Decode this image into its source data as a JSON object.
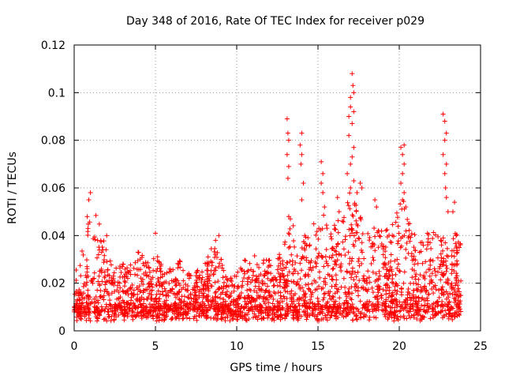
{
  "chart_data": {
    "type": "scatter",
    "title": "Day 348 of 2016, Rate Of TEC Index for receiver p029",
    "xlabel": "GPS time / hours",
    "ylabel": "ROTI / TECUs",
    "xlim": [
      0,
      25
    ],
    "ylim": [
      0,
      0.12
    ],
    "x_ticks": [
      0,
      5,
      10,
      15,
      20,
      25
    ],
    "x_tick_labels": [
      "0",
      "5",
      "10",
      "15",
      "20",
      "25"
    ],
    "y_ticks": [
      0,
      0.02,
      0.04,
      0.06,
      0.08,
      0.1,
      0.12
    ],
    "y_tick_labels": [
      "0",
      "0.02",
      "0.04",
      "0.06",
      "0.08",
      "0.1",
      "0.12"
    ],
    "grid": true,
    "marker": "+",
    "color": "#ff0000",
    "x_range_hours": [
      0,
      23.8
    ],
    "envelope": {
      "hours": [
        0,
        0.2,
        0.5,
        0.8,
        1.0,
        1.3,
        1.6,
        2.0,
        2.5,
        3.0,
        3.5,
        4.0,
        4.5,
        5.0,
        5.5,
        6.0,
        6.5,
        7.0,
        7.5,
        8.0,
        8.5,
        9.0,
        9.5,
        10.0,
        10.5,
        11.0,
        11.5,
        12.0,
        12.5,
        13.0,
        13.3,
        13.7,
        14.0,
        14.3,
        14.7,
        15.0,
        15.3,
        15.7,
        16.0,
        16.5,
        17.0,
        17.2,
        17.5,
        18.0,
        18.5,
        19.0,
        19.5,
        20.0,
        20.3,
        20.7,
        21.0,
        21.5,
        22.0,
        22.5,
        22.8,
        23.2,
        23.5,
        23.8
      ],
      "typical_max_roti": [
        0.022,
        0.03,
        0.034,
        0.048,
        0.052,
        0.05,
        0.044,
        0.036,
        0.03,
        0.028,
        0.03,
        0.034,
        0.028,
        0.038,
        0.026,
        0.026,
        0.032,
        0.024,
        0.025,
        0.028,
        0.036,
        0.032,
        0.022,
        0.024,
        0.03,
        0.032,
        0.03,
        0.03,
        0.034,
        0.038,
        0.048,
        0.04,
        0.045,
        0.04,
        0.045,
        0.05,
        0.05,
        0.042,
        0.046,
        0.048,
        0.06,
        0.06,
        0.05,
        0.042,
        0.045,
        0.042,
        0.045,
        0.052,
        0.06,
        0.045,
        0.04,
        0.04,
        0.045,
        0.038,
        0.04,
        0.05,
        0.042,
        0.038
      ]
    },
    "spikes": [
      {
        "x": 1.0,
        "y": 0.058
      },
      {
        "x": 0.9,
        "y": 0.055
      },
      {
        "x": 2.0,
        "y": 0.04
      },
      {
        "x": 5.0,
        "y": 0.041
      },
      {
        "x": 8.7,
        "y": 0.038
      },
      {
        "x": 8.9,
        "y": 0.04
      },
      {
        "x": 13.1,
        "y": 0.089
      },
      {
        "x": 13.15,
        "y": 0.083
      },
      {
        "x": 13.2,
        "y": 0.08
      },
      {
        "x": 13.1,
        "y": 0.074
      },
      {
        "x": 13.2,
        "y": 0.069
      },
      {
        "x": 13.15,
        "y": 0.064
      },
      {
        "x": 13.2,
        "y": 0.048
      },
      {
        "x": 13.3,
        "y": 0.047
      },
      {
        "x": 14.0,
        "y": 0.083
      },
      {
        "x": 13.9,
        "y": 0.078
      },
      {
        "x": 14.0,
        "y": 0.074
      },
      {
        "x": 13.95,
        "y": 0.07
      },
      {
        "x": 14.1,
        "y": 0.062
      },
      {
        "x": 14.0,
        "y": 0.055
      },
      {
        "x": 15.2,
        "y": 0.071
      },
      {
        "x": 15.3,
        "y": 0.066
      },
      {
        "x": 15.2,
        "y": 0.062
      },
      {
        "x": 15.3,
        "y": 0.058
      },
      {
        "x": 15.4,
        "y": 0.052
      },
      {
        "x": 16.2,
        "y": 0.056
      },
      {
        "x": 16.3,
        "y": 0.05
      },
      {
        "x": 16.9,
        "y": 0.09
      },
      {
        "x": 17.0,
        "y": 0.098
      },
      {
        "x": 17.1,
        "y": 0.108
      },
      {
        "x": 17.15,
        "y": 0.103
      },
      {
        "x": 17.2,
        "y": 0.1
      },
      {
        "x": 17.0,
        "y": 0.094
      },
      {
        "x": 17.2,
        "y": 0.092
      },
      {
        "x": 17.1,
        "y": 0.087
      },
      {
        "x": 16.9,
        "y": 0.082
      },
      {
        "x": 17.2,
        "y": 0.077
      },
      {
        "x": 17.1,
        "y": 0.073
      },
      {
        "x": 17.0,
        "y": 0.07
      },
      {
        "x": 16.8,
        "y": 0.066
      },
      {
        "x": 17.2,
        "y": 0.063
      },
      {
        "x": 17.0,
        "y": 0.06
      },
      {
        "x": 17.4,
        "y": 0.058
      },
      {
        "x": 17.6,
        "y": 0.062
      },
      {
        "x": 17.7,
        "y": 0.06
      },
      {
        "x": 18.5,
        "y": 0.055
      },
      {
        "x": 18.6,
        "y": 0.052
      },
      {
        "x": 20.1,
        "y": 0.077
      },
      {
        "x": 20.3,
        "y": 0.078
      },
      {
        "x": 20.2,
        "y": 0.074
      },
      {
        "x": 20.3,
        "y": 0.07
      },
      {
        "x": 20.2,
        "y": 0.066
      },
      {
        "x": 20.1,
        "y": 0.062
      },
      {
        "x": 20.3,
        "y": 0.058
      },
      {
        "x": 20.2,
        "y": 0.055
      },
      {
        "x": 20.4,
        "y": 0.052
      },
      {
        "x": 22.7,
        "y": 0.091
      },
      {
        "x": 22.8,
        "y": 0.088
      },
      {
        "x": 22.9,
        "y": 0.083
      },
      {
        "x": 22.8,
        "y": 0.08
      },
      {
        "x": 22.7,
        "y": 0.074
      },
      {
        "x": 22.9,
        "y": 0.07
      },
      {
        "x": 22.8,
        "y": 0.066
      },
      {
        "x": 22.85,
        "y": 0.06
      },
      {
        "x": 22.9,
        "y": 0.056
      },
      {
        "x": 23.0,
        "y": 0.05
      },
      {
        "x": 23.4,
        "y": 0.054
      },
      {
        "x": 23.3,
        "y": 0.05
      },
      {
        "x": 23.5,
        "y": 0.04
      }
    ]
  }
}
